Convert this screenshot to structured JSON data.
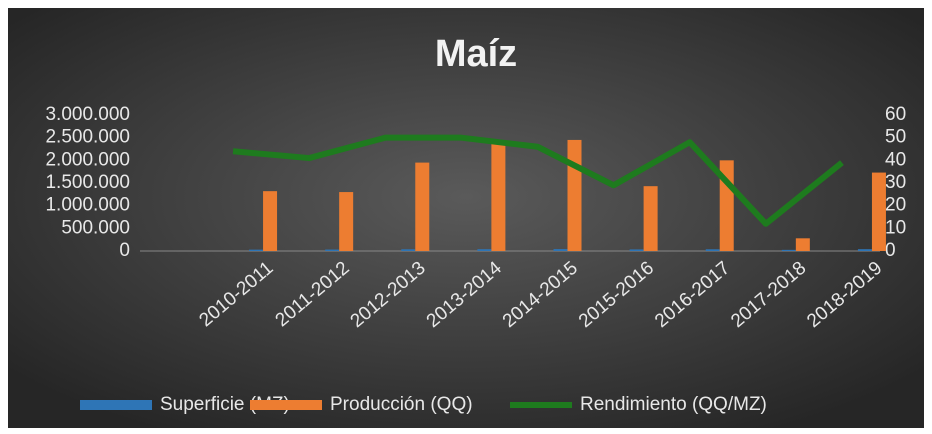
{
  "chart_data": {
    "type": "bar",
    "title": "Maíz",
    "categories": [
      "2010-2011",
      "2011-2012",
      "2012-2013",
      "2013-2014",
      "2014-2015",
      "2015-2016",
      "2016-2017",
      "2017-2018",
      "2018-2019"
    ],
    "series": [
      {
        "name": "Superficie (MZ)",
        "color": "#2e75b6",
        "type": "bar",
        "values": [
          30000,
          32000,
          38000,
          40000,
          42000,
          35000,
          38000,
          25000,
          40000
        ]
      },
      {
        "name": "Producción (QQ)",
        "color": "#ed7d31",
        "type": "bar",
        "values": [
          1320000,
          1300000,
          1950000,
          2380000,
          2450000,
          1430000,
          2000000,
          280000,
          1730000
        ]
      },
      {
        "name": "Rendimiento (QQ/MZ)",
        "color": "#1e7b1e",
        "type": "line",
        "axis": "y2",
        "values": [
          44,
          41,
          50,
          50,
          46,
          29,
          48,
          12,
          39
        ]
      }
    ],
    "ylim": [
      0,
      3000000
    ],
    "yticks": [
      0,
      {
        "value": 500000,
        "label": "500.000"
      },
      {
        "value": 1000000,
        "label": "1.000.000"
      },
      {
        "value": 1500000,
        "label": "1.500.000"
      },
      {
        "value": 2000000,
        "label": "2.000.000"
      },
      {
        "value": 2500000,
        "label": "2.500.000"
      },
      {
        "value": 3000000,
        "label": "3.000.000"
      }
    ],
    "y2lim": [
      0,
      60
    ],
    "y2ticks": [
      0,
      10,
      20,
      30,
      40,
      50,
      60
    ],
    "legend": "bottom"
  }
}
